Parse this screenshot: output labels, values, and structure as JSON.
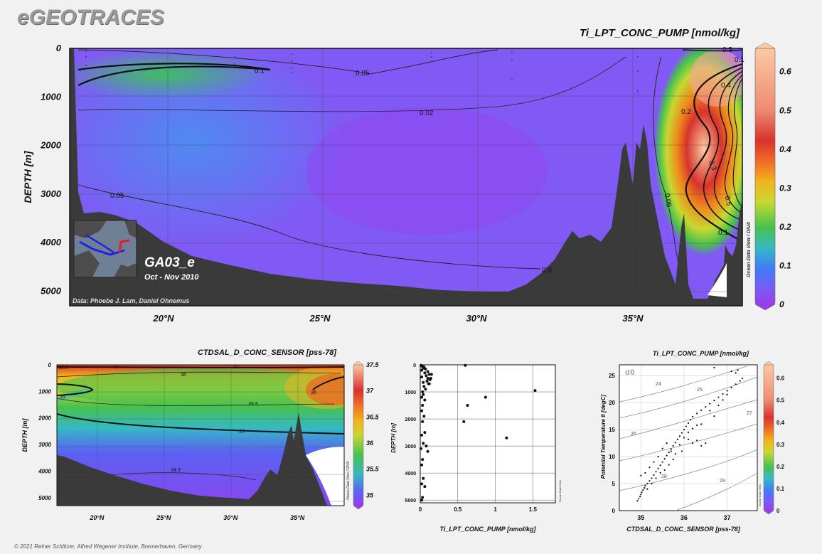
{
  "header": {
    "logo": "eGEOTRACES",
    "footer": "© 2021 Reiner Schlitzer, Alfred Wegener Institute, Bremerhaven, Germany"
  },
  "chart_data": [
    {
      "type": "heatmap",
      "title": "Ti_LPT_CONC_PUMP [nmol/kg]",
      "ylabel": "DEPTH [m]",
      "xlabel": "",
      "x_ticks": [
        "20°N",
        "25°N",
        "30°N",
        "35°N"
      ],
      "x_tick_values": [
        20,
        25,
        30,
        35
      ],
      "xlim": [
        17,
        38.5
      ],
      "y_ticks": [
        0,
        1000,
        2000,
        3000,
        4000,
        5000
      ],
      "ylim": [
        0,
        5300
      ],
      "colorbar": {
        "ticks": [
          0,
          0.1,
          0.2,
          0.3,
          0.4,
          0.5,
          0.6
        ],
        "range": [
          0,
          0.66
        ],
        "label": "Ocean Data View / DIVA"
      },
      "contour_labels": [
        "0.1",
        "0.05",
        "0.02",
        "0.05",
        "0.05",
        "0.1",
        "0.2",
        "0.3",
        "0.4",
        "0.5",
        "0.1",
        "0.5",
        "0.0"
      ],
      "section_name": "GA03_e",
      "period": "Oct - Nov 2010",
      "credit": "Data: Phoebe J. Lam, Daniel Ohnemus",
      "grid": true
    },
    {
      "type": "heatmap",
      "title": "CTDSAL_D_CONC_SENSOR [pss-78]",
      "ylabel": "DEPTH [m]",
      "x_ticks": [
        "20°N",
        "25°N",
        "30°N",
        "35°N"
      ],
      "x_tick_values": [
        20,
        25,
        30,
        35
      ],
      "xlim": [
        17,
        38.5
      ],
      "y_ticks": [
        0,
        1000,
        2000,
        3000,
        4000,
        5000
      ],
      "ylim": [
        0,
        5300
      ],
      "colorbar": {
        "ticks": [
          35,
          35.5,
          36,
          36.5,
          37,
          37.5
        ],
        "range": [
          34.8,
          37.5
        ],
        "label": "Ocean Data View / DIVA"
      },
      "contour_labels": [
        "36.5",
        "37",
        "37",
        "36",
        "35",
        "36",
        "35.5",
        "35",
        "34.9"
      ],
      "grid": true
    },
    {
      "type": "scatter",
      "xlabel": "Ti_LPT_CONC_PUMP [nmol/kg]",
      "ylabel": "DEPTH [m]",
      "x_ticks": [
        0,
        0.5,
        1,
        1.5
      ],
      "xlim": [
        0,
        1.8
      ],
      "y_ticks": [
        0,
        1000,
        2000,
        3000,
        4000,
        5000
      ],
      "ylim": [
        0,
        5100
      ],
      "side_label": "Ocean Data View",
      "grid": true,
      "points": [
        [
          0.01,
          20
        ],
        [
          0.02,
          40
        ],
        [
          0.03,
          60
        ],
        [
          0.05,
          80
        ],
        [
          0.04,
          120
        ],
        [
          0.07,
          150
        ],
        [
          0.02,
          200
        ],
        [
          0.1,
          250
        ],
        [
          0.06,
          300
        ],
        [
          0.12,
          350
        ],
        [
          0.08,
          400
        ],
        [
          0.02,
          450
        ],
        [
          0.1,
          500
        ],
        [
          0.13,
          550
        ],
        [
          0.09,
          600
        ],
        [
          0.04,
          650
        ],
        [
          0.11,
          700
        ],
        [
          0.05,
          800
        ],
        [
          0.07,
          900
        ],
        [
          0.03,
          1000
        ],
        [
          0.04,
          1100
        ],
        [
          0.02,
          1200
        ],
        [
          0.06,
          1300
        ],
        [
          0.03,
          1500
        ],
        [
          0.02,
          1700
        ],
        [
          0.05,
          1900
        ],
        [
          0.03,
          2100
        ],
        [
          0.06,
          2500
        ],
        [
          0.02,
          2600
        ],
        [
          0.04,
          2900
        ],
        [
          0.08,
          3000
        ],
        [
          0.01,
          3100
        ],
        [
          0.1,
          3200
        ],
        [
          0.03,
          3500
        ],
        [
          0.02,
          3700
        ],
        [
          0.04,
          4200
        ],
        [
          0.02,
          4400
        ],
        [
          0.06,
          4500
        ],
        [
          0.03,
          4900
        ],
        [
          0.02,
          5000
        ],
        [
          0.15,
          350
        ],
        [
          0.14,
          500
        ],
        [
          0.12,
          700
        ],
        [
          0.6,
          20
        ],
        [
          1.53,
          950
        ],
        [
          0.87,
          1200
        ],
        [
          0.63,
          1500
        ],
        [
          0.58,
          2100
        ],
        [
          1.15,
          2700
        ]
      ]
    },
    {
      "type": "scatter",
      "title": "Ti_LPT_CONC_PUMP [nmol/kg]",
      "xlabel": "CTDSAL_D_CONC_SENSOR [pss-78]",
      "ylabel": "Potential Temperature θ [degC]",
      "x_ticks": [
        35,
        36,
        37
      ],
      "xlim": [
        34.5,
        37.7
      ],
      "y_ticks": [
        0,
        5,
        10,
        15,
        20,
        25
      ],
      "ylim": [
        0,
        27
      ],
      "density_label": "σ0",
      "isopycnals": [
        "24",
        "25",
        "26",
        "27",
        "28",
        "29"
      ],
      "colorbar": {
        "ticks": [
          0,
          0.1,
          0.2,
          0.3,
          0.4,
          0.5,
          0.6
        ],
        "range": [
          0,
          0.66
        ],
        "label": "Ocean Data View"
      },
      "grid": true,
      "points": [
        [
          34.92,
          1.8
        ],
        [
          34.95,
          2.2
        ],
        [
          34.98,
          2.6
        ],
        [
          35.0,
          3.0
        ],
        [
          35.02,
          3.4
        ],
        [
          35.05,
          3.8
        ],
        [
          35.08,
          4.2
        ],
        [
          35.1,
          4.6
        ],
        [
          35.15,
          5.0
        ],
        [
          35.2,
          5.5
        ],
        [
          35.25,
          6.0
        ],
        [
          35.3,
          6.6
        ],
        [
          35.35,
          7.2
        ],
        [
          35.4,
          7.8
        ],
        [
          35.45,
          8.4
        ],
        [
          35.5,
          9.0
        ],
        [
          35.55,
          9.6
        ],
        [
          35.6,
          10.2
        ],
        [
          35.65,
          10.8
        ],
        [
          35.7,
          11.4
        ],
        [
          35.75,
          12.0
        ],
        [
          35.8,
          12.6
        ],
        [
          35.85,
          13.2
        ],
        [
          35.9,
          13.8
        ],
        [
          35.95,
          14.4
        ],
        [
          36.0,
          15.0
        ],
        [
          36.05,
          15.6
        ],
        [
          36.1,
          16.2
        ],
        [
          36.15,
          16.8
        ],
        [
          36.2,
          17.4
        ],
        [
          36.3,
          18.0
        ],
        [
          36.4,
          18.6
        ],
        [
          36.5,
          19.2
        ],
        [
          36.6,
          19.8
        ],
        [
          36.7,
          20.4
        ],
        [
          36.8,
          21.0
        ],
        [
          36.9,
          21.6
        ],
        [
          37.0,
          22.2
        ],
        [
          37.1,
          22.8
        ],
        [
          37.2,
          23.4
        ],
        [
          37.3,
          24.0
        ],
        [
          37.35,
          24.5
        ],
        [
          35.6,
          12.5
        ],
        [
          35.7,
          11.0
        ],
        [
          35.8,
          10.5
        ],
        [
          36.2,
          12.5
        ],
        [
          36.3,
          13.0
        ],
        [
          36.4,
          12.0
        ],
        [
          36.5,
          12.5
        ],
        [
          35.4,
          10.0
        ],
        [
          35.5,
          11.5
        ],
        [
          35.3,
          9.0
        ],
        [
          35.2,
          8.0
        ],
        [
          35.1,
          7.0
        ],
        [
          35.0,
          6.5
        ],
        [
          36.0,
          13.5
        ],
        [
          36.1,
          14.5
        ],
        [
          36.6,
          18.5
        ],
        [
          36.8,
          19.5
        ],
        [
          36.9,
          20.5
        ],
        [
          37.0,
          21.5
        ],
        [
          36.7,
          17.5
        ],
        [
          36.4,
          16.0
        ],
        [
          36.2,
          15.2
        ],
        [
          36.3,
          15.8
        ],
        [
          36.1,
          13.2
        ],
        [
          35.9,
          12.2
        ],
        [
          35.95,
          11.0
        ],
        [
          35.75,
          9.5
        ],
        [
          35.65,
          8.5
        ],
        [
          35.55,
          7.5
        ],
        [
          35.45,
          7.0
        ],
        [
          35.35,
          6.0
        ],
        [
          35.25,
          5.0
        ],
        [
          35.15,
          4.0
        ],
        [
          37.2,
          25.5
        ],
        [
          37.25,
          26.0
        ],
        [
          37.1,
          25.8
        ],
        [
          36.7,
          26.5
        ]
      ]
    }
  ]
}
